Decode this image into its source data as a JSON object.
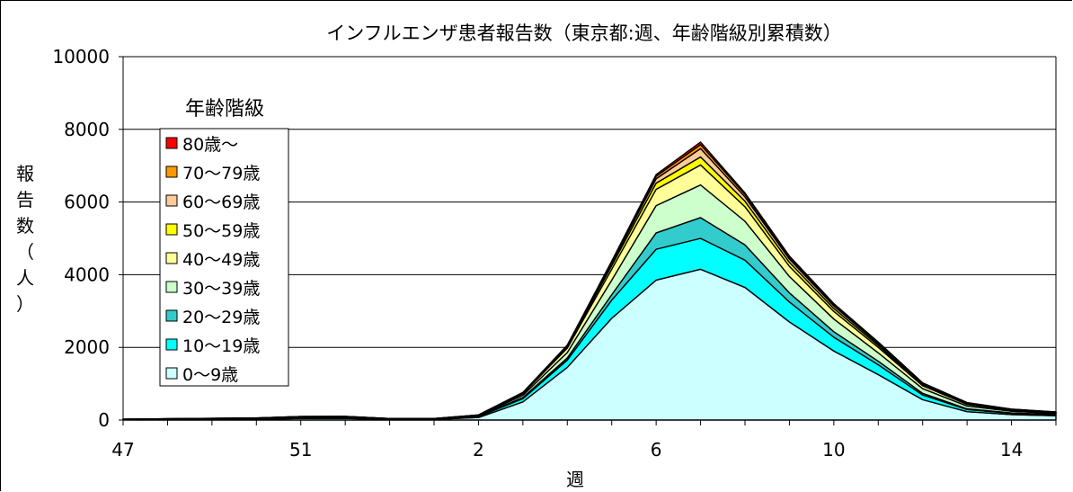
{
  "chart_data": {
    "type": "area",
    "stacked": true,
    "title": "インフルエンザ患者報告数（東京都:週、年齢階級別累積数）",
    "xlabel": "週",
    "ylabel": "報告数（人）",
    "ylim": [
      0,
      10000
    ],
    "yticks": [
      "0",
      "2000",
      "4000",
      "6000",
      "8000",
      "10000"
    ],
    "x": [
      "47",
      "48",
      "49",
      "50",
      "51",
      "52",
      "53",
      "1",
      "2",
      "3",
      "4",
      "5",
      "6",
      "7",
      "8",
      "9",
      "10",
      "11",
      "12",
      "13",
      "14",
      "15"
    ],
    "xtick_labels": [
      "47",
      "",
      "",
      "",
      "51",
      "",
      "",
      "",
      "2",
      "",
      "",
      "",
      "6",
      "",
      "",
      "",
      "10",
      "",
      "",
      "",
      "14",
      ""
    ],
    "grid": true,
    "legend": {
      "title": "年齢階級",
      "placement": "upper-left"
    },
    "series": [
      {
        "name": "0～9歳",
        "color": "#ccffff",
        "values": [
          10,
          15,
          20,
          25,
          45,
          45,
          20,
          20,
          70,
          500,
          1450,
          2800,
          3850,
          4150,
          3650,
          2700,
          1900,
          1250,
          560,
          230,
          150,
          120
        ]
      },
      {
        "name": "10～19歳",
        "color": "#00ffff",
        "values": [
          5,
          8,
          10,
          12,
          20,
          22,
          8,
          8,
          25,
          90,
          200,
          500,
          850,
          850,
          750,
          550,
          380,
          270,
          130,
          60,
          35,
          25
        ]
      },
      {
        "name": "20～29歳",
        "color": "#33cccc",
        "values": [
          2,
          3,
          4,
          5,
          8,
          8,
          3,
          3,
          10,
          30,
          60,
          150,
          450,
          570,
          420,
          250,
          150,
          100,
          45,
          20,
          12,
          10
        ]
      },
      {
        "name": "30～39歳",
        "color": "#ccffcc",
        "values": [
          3,
          4,
          5,
          6,
          10,
          10,
          4,
          4,
          15,
          60,
          150,
          400,
          750,
          900,
          650,
          450,
          350,
          230,
          130,
          75,
          45,
          30
        ]
      },
      {
        "name": "40～49歳",
        "color": "#ffff99",
        "values": [
          2,
          3,
          4,
          5,
          8,
          8,
          3,
          3,
          10,
          45,
          120,
          300,
          450,
          550,
          400,
          280,
          210,
          150,
          80,
          45,
          28,
          18
        ]
      },
      {
        "name": "50～59歳",
        "color": "#ffff00",
        "values": [
          1,
          1,
          2,
          2,
          3,
          3,
          1,
          1,
          5,
          15,
          40,
          100,
          170,
          220,
          150,
          110,
          80,
          55,
          30,
          20,
          12,
          8
        ]
      },
      {
        "name": "60～69歳",
        "color": "#ffcc99",
        "values": [
          1,
          1,
          1,
          1,
          2,
          2,
          1,
          1,
          3,
          10,
          20,
          60,
          120,
          230,
          120,
          90,
          70,
          45,
          25,
          15,
          10,
          6
        ]
      },
      {
        "name": "70～79歳",
        "color": "#ff9900",
        "values": [
          0,
          1,
          1,
          1,
          1,
          1,
          0,
          0,
          2,
          6,
          15,
          40,
          70,
          110,
          70,
          55,
          40,
          30,
          15,
          10,
          6,
          4
        ]
      },
      {
        "name": "80歳～",
        "color": "#ff0000",
        "values": [
          0,
          0,
          0,
          0,
          1,
          1,
          0,
          0,
          1,
          4,
          10,
          25,
          45,
          70,
          40,
          30,
          25,
          18,
          10,
          6,
          4,
          3
        ]
      }
    ]
  }
}
